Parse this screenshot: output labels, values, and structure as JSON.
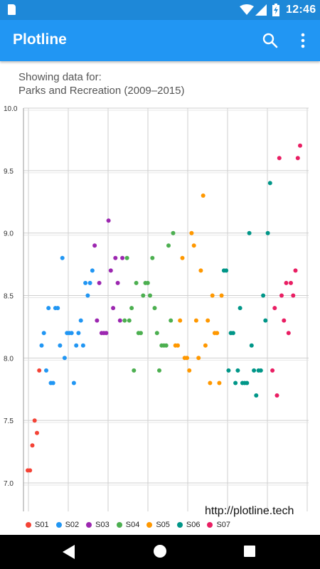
{
  "status_bar": {
    "time": "12:46",
    "icons": [
      "sd-card-icon",
      "wifi-icon",
      "signal-icon",
      "battery-charging-icon"
    ]
  },
  "app_bar": {
    "title": "Plotline",
    "icons": [
      "search-icon",
      "more-vert-icon"
    ],
    "color": "#2196f3"
  },
  "subtitle": {
    "line1": "Showing data for:",
    "line2": "Parks and Recreation (2009–2015)"
  },
  "watermark": "http://plotline.tech",
  "chart_data": {
    "type": "scatter",
    "ylim": [
      7.0,
      10.0
    ],
    "y_ticks": [
      "7.0",
      "7.5",
      "8.0",
      "8.5",
      "9.0",
      "9.5",
      "10.0"
    ],
    "grid": true,
    "legend_position": "bottom-left",
    "series": [
      {
        "name": "S01",
        "color": "#f44336",
        "values": [
          7.1,
          7.1,
          7.3,
          7.5,
          7.4,
          7.9
        ]
      },
      {
        "name": "S02",
        "color": "#2196f3",
        "values": [
          8.1,
          8.2,
          7.9,
          8.4,
          7.8,
          7.8,
          8.4,
          8.4,
          8.1,
          8.8,
          8.0,
          8.2,
          8.2,
          8.2,
          7.8,
          8.1,
          8.2,
          8.3,
          8.1,
          8.6,
          8.5,
          8.6,
          8.7
        ]
      },
      {
        "name": "S03",
        "color": "#9c27b0",
        "values": [
          8.9,
          8.3,
          8.6,
          8.2,
          8.2,
          8.2,
          9.1,
          8.7,
          8.4,
          8.8,
          8.6,
          8.3,
          8.8
        ]
      },
      {
        "name": "S04",
        "color": "#4caf50",
        "values": [
          8.3,
          8.8,
          8.3,
          8.4,
          7.9,
          8.6,
          8.2,
          8.2,
          8.5,
          8.6,
          8.6,
          8.5,
          8.8,
          8.4,
          8.2,
          7.9,
          8.1,
          8.1,
          8.1,
          8.9,
          8.3,
          9.0
        ]
      },
      {
        "name": "S05",
        "color": "#ff9800",
        "values": [
          8.1,
          8.1,
          8.3,
          8.8,
          8.0,
          8.0,
          7.9,
          9.0,
          8.9,
          8.3,
          8.0,
          8.7,
          9.3,
          8.1,
          8.3,
          7.8,
          8.5,
          8.2,
          8.2,
          7.8,
          8.5
        ]
      },
      {
        "name": "S06",
        "color": "#009688",
        "values": [
          8.7,
          8.7,
          7.9,
          8.2,
          8.2,
          7.8,
          7.9,
          8.4,
          7.8,
          7.8,
          7.8,
          9.0,
          8.1,
          7.9,
          7.7,
          7.9,
          7.9,
          8.5,
          8.3,
          9.0,
          9.4
        ]
      },
      {
        "name": "S07",
        "color": "#e91e63",
        "values": [
          7.9,
          8.4,
          7.7,
          9.6,
          8.5,
          8.3,
          8.6,
          8.2,
          8.6,
          8.5,
          8.7,
          9.6,
          9.7
        ]
      }
    ]
  }
}
